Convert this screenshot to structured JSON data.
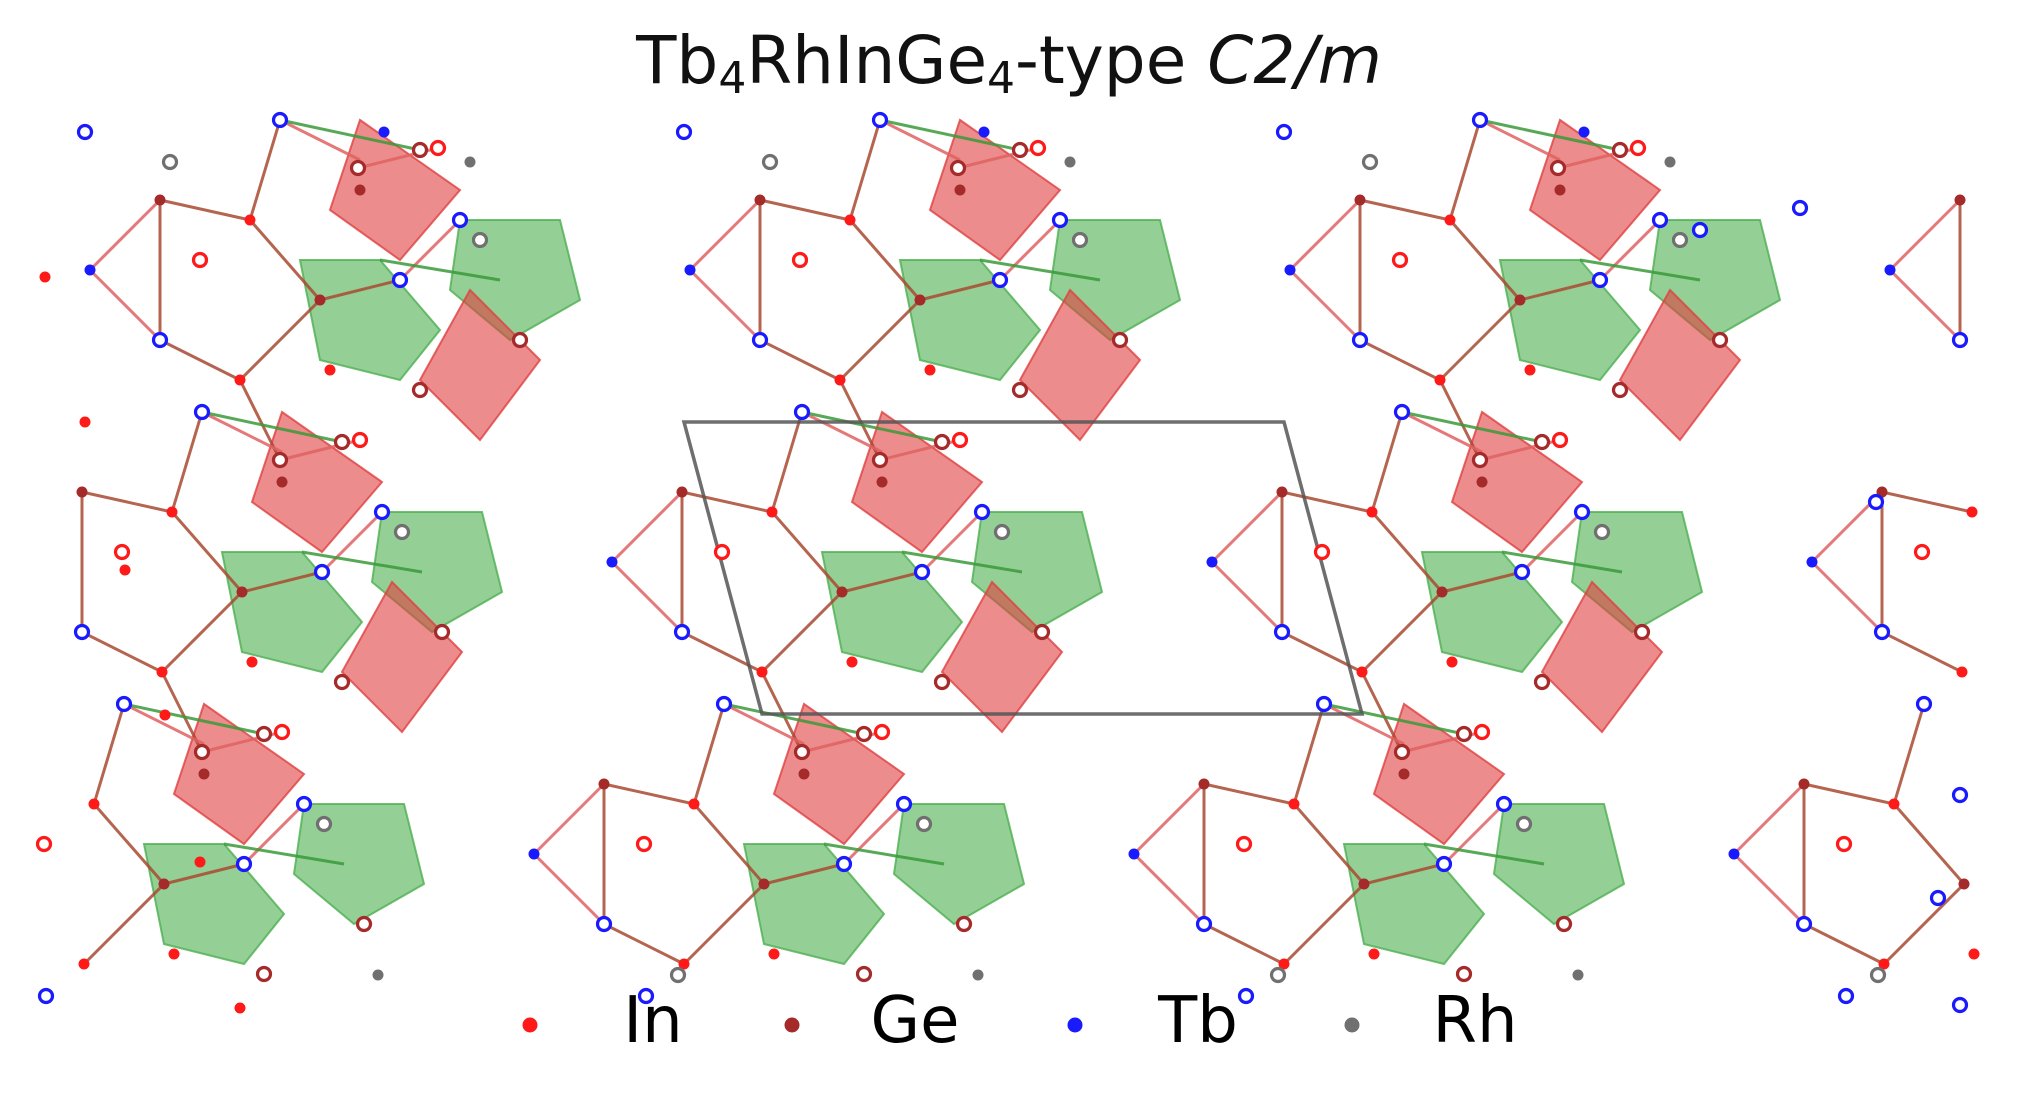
{
  "title": {
    "formula_parts": [
      {
        "text": "Tb"
      },
      {
        "sub": "4"
      },
      {
        "text": "RhInGe"
      },
      {
        "sub": "4"
      },
      {
        "text": "-type "
      }
    ],
    "space_group": "C2/m"
  },
  "colors": {
    "In": "#ff1a1a",
    "Ge": "#a52a2a",
    "Tb": "#1a1aff",
    "Rh": "#707070",
    "cell": "#555555",
    "green_fill": "#4caf50",
    "red_fill": "#e04040",
    "green_edge": "#3a9a3a",
    "red_edge": "#e06060",
    "brown_edge": "#a84a30"
  },
  "legend": [
    {
      "label": "In",
      "color_key": "In"
    },
    {
      "label": "Ge",
      "color_key": "Ge"
    },
    {
      "label": "Tb",
      "color_key": "Tb"
    },
    {
      "label": "Rh",
      "color_key": "Rh"
    }
  ]
}
